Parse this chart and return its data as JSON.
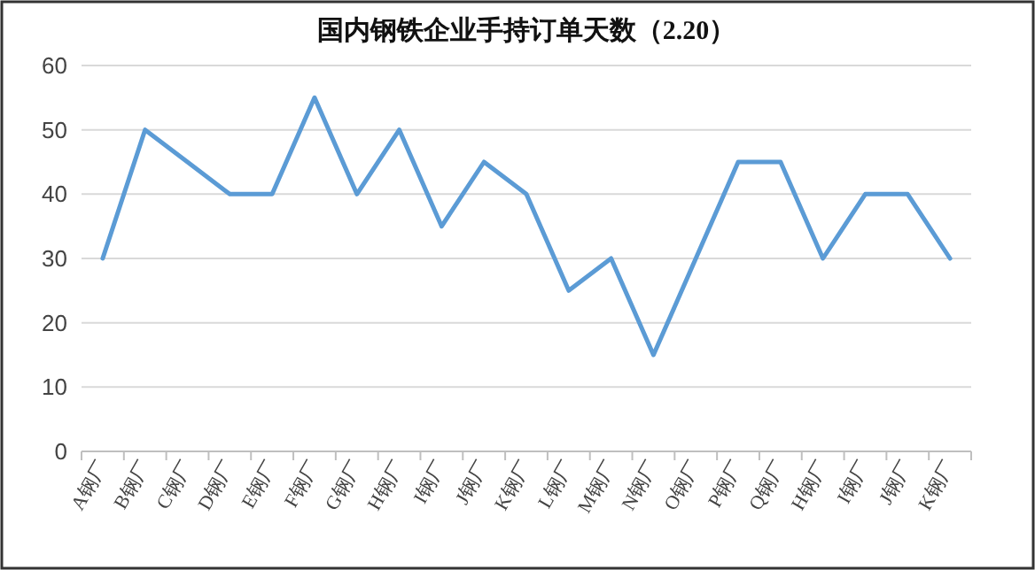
{
  "chart_data": {
    "type": "line",
    "title": "国内钢铁企业手持订单天数（2.20）",
    "categories": [
      "A钢厂",
      "B钢厂",
      "C钢厂",
      "D钢厂",
      "E钢厂",
      "F钢厂",
      "G钢厂",
      "H钢厂",
      "I钢厂",
      "J钢厂",
      "K钢厂",
      "L钢厂",
      "M钢厂",
      "N钢厂",
      "O钢厂",
      "P钢厂",
      "Q钢厂",
      "H钢厂",
      "I钢厂",
      "J钢厂",
      "K钢厂"
    ],
    "series": [
      {
        "color": "#5b9bd5",
        "values": [
          30,
          50,
          45,
          40,
          40,
          55,
          40,
          50,
          35,
          45,
          40,
          25,
          30,
          15,
          30,
          45,
          45,
          30,
          40,
          40,
          30
        ]
      }
    ],
    "ylim": [
      0,
      60
    ],
    "yticks": [
      0,
      10,
      20,
      30,
      40,
      50,
      60
    ],
    "grid": "y",
    "marker": "none",
    "line_style": "solid"
  }
}
